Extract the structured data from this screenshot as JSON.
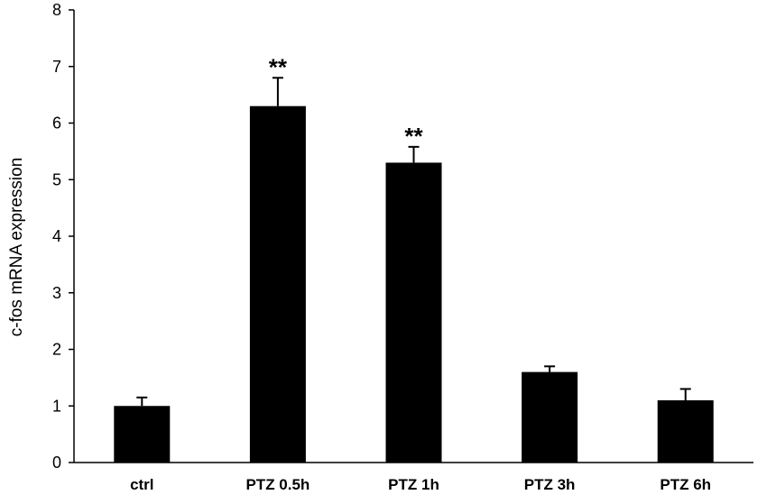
{
  "chart_data": {
    "type": "bar",
    "categories": [
      "ctrl",
      "PTZ 0.5h",
      "PTZ 1h",
      "PTZ 3h",
      "PTZ 6h"
    ],
    "values": [
      1.0,
      6.3,
      5.3,
      1.6,
      1.1
    ],
    "errors": [
      0.15,
      0.5,
      0.28,
      0.1,
      0.2
    ],
    "annotations": [
      "",
      "**",
      "**",
      "",
      ""
    ],
    "ylabel": "c-fos mRNA  expression",
    "xlabel": "",
    "ylim": [
      0,
      8
    ],
    "yticks": [
      0,
      1,
      2,
      3,
      4,
      5,
      6,
      7,
      8
    ],
    "bar_color": "#000000",
    "grid": false,
    "legend": "none"
  }
}
